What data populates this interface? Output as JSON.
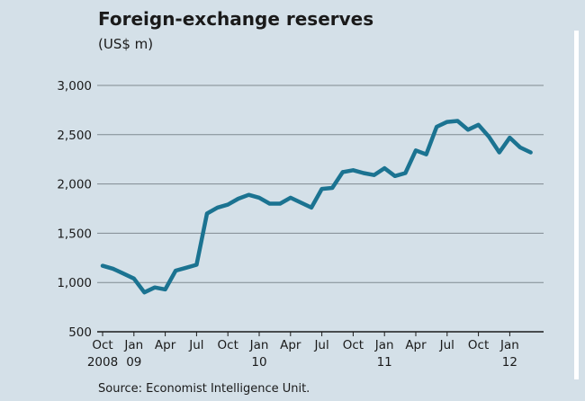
{
  "chart_data": {
    "type": "line",
    "title": "Foreign-exchange reserves",
    "subtitle": "(US$ m)",
    "source": "Source: Economist Intelligence Unit.",
    "ylim": [
      500,
      3000
    ],
    "yticks": [
      "3,000",
      "2,500",
      "2,000",
      "1,500",
      "1,000",
      "500"
    ],
    "ytick_values": [
      3000,
      2500,
      2000,
      1500,
      1000,
      500
    ],
    "xticks": [
      {
        "label": "Oct",
        "year": "2008",
        "index": 0
      },
      {
        "label": "Jan",
        "year": "09",
        "index": 3
      },
      {
        "label": "Apr",
        "year": "",
        "index": 6
      },
      {
        "label": "Jul",
        "year": "",
        "index": 9
      },
      {
        "label": "Oct",
        "year": "",
        "index": 12
      },
      {
        "label": "Jan",
        "year": "10",
        "index": 15
      },
      {
        "label": "Apr",
        "year": "",
        "index": 18
      },
      {
        "label": "Jul",
        "year": "",
        "index": 21
      },
      {
        "label": "Oct",
        "year": "",
        "index": 24
      },
      {
        "label": "Jan",
        "year": "11",
        "index": 27
      },
      {
        "label": "Apr",
        "year": "",
        "index": 30
      },
      {
        "label": "Jul",
        "year": "",
        "index": 33
      },
      {
        "label": "Oct",
        "year": "",
        "index": 36
      },
      {
        "label": "Jan",
        "year": "12",
        "index": 39
      }
    ],
    "grid": true,
    "series": [
      {
        "color": "#1b7391",
        "x": [
          "Oct 2008",
          "Nov 2008",
          "Dec 2008",
          "Jan 2009",
          "Feb 2009",
          "Mar 2009",
          "Apr 2009",
          "May 2009",
          "Jun 2009",
          "Jul 2009",
          "Aug 2009",
          "Sep 2009",
          "Oct 2009",
          "Nov 2009",
          "Dec 2009",
          "Jan 2010",
          "Feb 2010",
          "Mar 2010",
          "Apr 2010",
          "May 2010",
          "Jun 2010",
          "Jul 2010",
          "Aug 2010",
          "Sep 2010",
          "Oct 2010",
          "Nov 2010",
          "Dec 2010",
          "Jan 2011",
          "Feb 2011",
          "Mar 2011",
          "Apr 2011",
          "May 2011",
          "Jun 2011",
          "Jul 2011",
          "Aug 2011",
          "Sep 2011",
          "Oct 2011",
          "Nov 2011",
          "Dec 2011",
          "Jan 2012",
          "Feb 2012",
          "Mar 2012"
        ],
        "values": [
          1170,
          1140,
          1090,
          1040,
          900,
          950,
          930,
          1120,
          1150,
          1180,
          1700,
          1760,
          1790,
          1850,
          1890,
          1860,
          1800,
          1800,
          1860,
          1810,
          1760,
          1950,
          1960,
          2120,
          2140,
          2110,
          2090,
          2160,
          2080,
          2110,
          2340,
          2300,
          2580,
          2630,
          2640,
          2550,
          2600,
          2480,
          2320,
          2470,
          2370,
          2320
        ]
      }
    ]
  }
}
